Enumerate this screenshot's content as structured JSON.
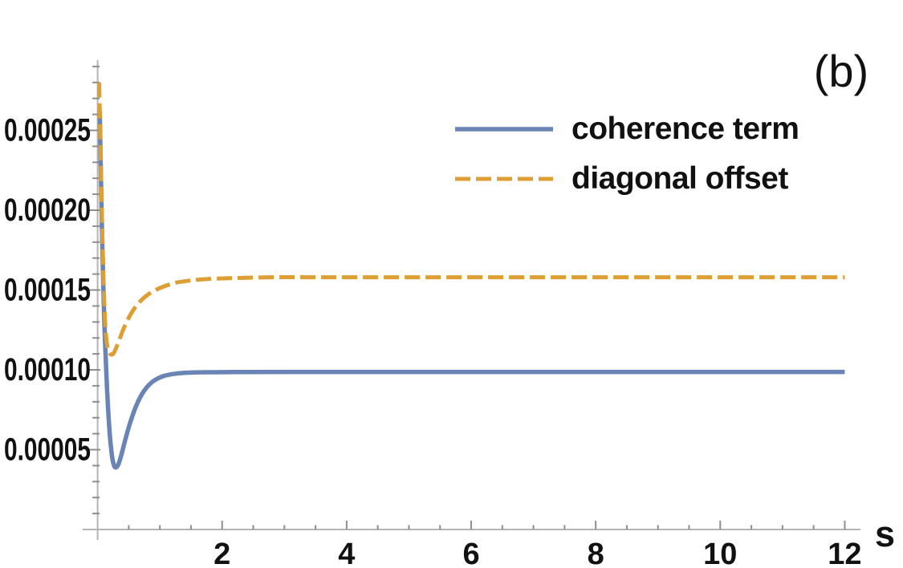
{
  "panel_label": "(b)",
  "chart_data": {
    "type": "line",
    "title": "",
    "xlabel": "s",
    "ylabel": "",
    "xlim": [
      0,
      12.25
    ],
    "ylim": [
      0,
      0.000294
    ],
    "grid": false,
    "legend_position": "top-right-inside",
    "axis_color": "#b4b4b4",
    "tick_color": "#8e8e8e",
    "label_color": "#111111",
    "xticks": {
      "major": [
        2,
        4,
        6,
        8,
        10,
        12
      ],
      "major_labels": [
        "2",
        "4",
        "6",
        "8",
        "10",
        "12"
      ],
      "minor_step": 0.5,
      "minor_max": 12
    },
    "yticks": {
      "major": [
        5e-05,
        0.0001,
        0.00015,
        0.0002,
        0.00025
      ],
      "major_labels": [
        "0.00005",
        "0.00010",
        "0.00015",
        "0.00020",
        "0.00025"
      ],
      "minor_step": 1e-05,
      "minor_max": 0.00029
    },
    "series": [
      {
        "name": "coherence term",
        "color": "#6984b5",
        "style": "solid",
        "asymptote": 9.87e-05,
        "points": [
          [
            0.035,
            0.000262
          ],
          [
            0.05,
            0.000228
          ],
          [
            0.07,
            0.000188
          ],
          [
            0.09,
            0.000155
          ],
          [
            0.11,
            0.000128
          ],
          [
            0.14,
            9.8e-05
          ],
          [
            0.17,
            7.45e-05
          ],
          [
            0.2,
            5.75e-05
          ],
          [
            0.23,
            4.65e-05
          ],
          [
            0.26,
            4.05e-05
          ],
          [
            0.29,
            3.88e-05
          ],
          [
            0.33,
            4.05e-05
          ],
          [
            0.38,
            4.65e-05
          ],
          [
            0.44,
            5.55e-05
          ],
          [
            0.52,
            6.65e-05
          ],
          [
            0.62,
            7.75e-05
          ],
          [
            0.74,
            8.65e-05
          ],
          [
            0.88,
            9.25e-05
          ],
          [
            1.05,
            9.6e-05
          ],
          [
            1.25,
            9.76e-05
          ],
          [
            1.5,
            9.83e-05
          ],
          [
            1.8,
            9.85e-05
          ],
          [
            2.2,
            9.86e-05
          ],
          [
            3.0,
            9.87e-05
          ],
          [
            4.0,
            9.87e-05
          ],
          [
            5.0,
            9.87e-05
          ],
          [
            6.0,
            9.87e-05
          ],
          [
            7.0,
            9.87e-05
          ],
          [
            8.0,
            9.87e-05
          ],
          [
            9.0,
            9.87e-05
          ],
          [
            10.0,
            9.87e-05
          ],
          [
            11.0,
            9.87e-05
          ],
          [
            12.0,
            9.87e-05
          ]
        ]
      },
      {
        "name": "diagonal offset",
        "color": "#dd9e33",
        "style": "dashed",
        "asymptote": 0.000158,
        "points": [
          [
            0.025,
            0.00028
          ],
          [
            0.04,
            0.000252
          ],
          [
            0.055,
            0.000222
          ],
          [
            0.07,
            0.000196
          ],
          [
            0.09,
            0.000163
          ],
          [
            0.11,
            0.00014
          ],
          [
            0.13,
            0.000124
          ],
          [
            0.16,
            0.000114
          ],
          [
            0.2,
            0.00011
          ],
          [
            0.25,
            0.00011
          ],
          [
            0.3,
            0.000114
          ],
          [
            0.36,
            0.00012
          ],
          [
            0.43,
            0.000127
          ],
          [
            0.52,
            0.000134
          ],
          [
            0.62,
            0.00014
          ],
          [
            0.74,
            0.000145
          ],
          [
            0.88,
            0.000149
          ],
          [
            1.05,
            0.000152
          ],
          [
            1.25,
            0.0001545
          ],
          [
            1.5,
            0.000156
          ],
          [
            1.8,
            0.000157
          ],
          [
            2.2,
            0.0001575
          ],
          [
            2.8,
            0.000158
          ],
          [
            3.5,
            0.000158
          ],
          [
            4.5,
            0.000158
          ],
          [
            5.5,
            0.000158
          ],
          [
            6.5,
            0.000158
          ],
          [
            7.5,
            0.000158
          ],
          [
            8.5,
            0.000158
          ],
          [
            9.5,
            0.000158
          ],
          [
            10.5,
            0.000158
          ],
          [
            11.5,
            0.000158
          ],
          [
            12.0,
            0.000158
          ]
        ]
      }
    ]
  }
}
